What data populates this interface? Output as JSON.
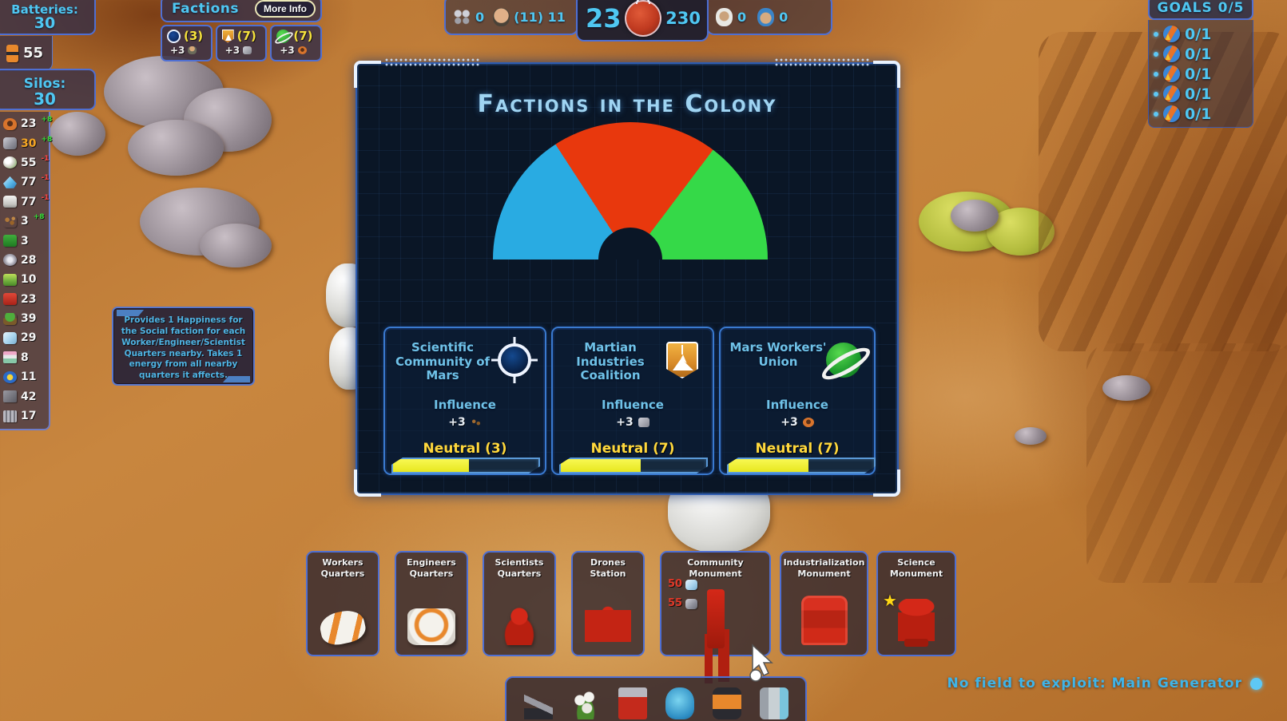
{
  "left_panel": {
    "batteries_label": "Batteries:",
    "batteries_value": "30",
    "battery_count": "55",
    "silos_label": "Silos:",
    "silos_value": "30",
    "resources": [
      {
        "icon": "copper-icon",
        "value": "23",
        "delta": "+8",
        "delta_color": "#3ae03a"
      },
      {
        "icon": "metal-icon",
        "value": "30",
        "delta": "+8",
        "delta_color": "#3ae03a",
        "value_color": "#f5a623"
      },
      {
        "icon": "food-icon",
        "value": "55",
        "delta": "-1",
        "delta_color": "#ff4545"
      },
      {
        "icon": "crystal-icon",
        "value": "77",
        "delta": "-1",
        "delta_color": "#ff4545"
      },
      {
        "icon": "canister-icon",
        "value": "77",
        "delta": "-1",
        "delta_color": "#ff4545"
      },
      {
        "icon": "seeds-icon",
        "value": "3",
        "delta": "+8",
        "delta_color": "#3ae03a"
      },
      {
        "icon": "green-barrel-icon",
        "value": "3"
      },
      {
        "icon": "turbine-icon",
        "value": "28"
      },
      {
        "icon": "machine-icon",
        "value": "10"
      },
      {
        "icon": "red-barrel-icon",
        "value": "23"
      },
      {
        "icon": "plant-icon",
        "value": "39"
      },
      {
        "icon": "glass-icon",
        "value": "29"
      },
      {
        "icon": "books-icon",
        "value": "8"
      },
      {
        "icon": "gadget-icon",
        "value": "11"
      },
      {
        "icon": "concrete-icon",
        "value": "42"
      },
      {
        "icon": "mesh-icon",
        "value": "17"
      }
    ]
  },
  "factions_panel": {
    "title": "Factions",
    "more_info_label": "More Info",
    "items": [
      {
        "faction": "scientific-community",
        "count": "(3)",
        "bonus": "+3"
      },
      {
        "faction": "martian-industries",
        "count": "(7)",
        "bonus": "+3"
      },
      {
        "faction": "mars-workers-union",
        "count": "(7)",
        "bonus": "+3"
      }
    ]
  },
  "top_stats": {
    "drones": "0",
    "workers": "(11) 11",
    "sol": "23",
    "colonists": "230",
    "engineers": "0",
    "scientists": "0"
  },
  "goals_panel": {
    "title": "GOALS 0/5",
    "items": [
      "0/1",
      "0/1",
      "0/1",
      "0/1",
      "0/1"
    ]
  },
  "tooltip": {
    "text": "Provides 1 Happiness for the Social faction for each Worker/Engineer/Scientist Quarters nearby. Takes 1 energy from all nearby quarters it affects."
  },
  "modal": {
    "title": "Factions in the Colony",
    "cards": [
      {
        "name": "Scientific Community of Mars",
        "influence_label": "Influence",
        "influence_bonus": "+3",
        "standing": "Neutral (3)",
        "bar_pct": 52
      },
      {
        "name": "Martian Industries Coalition",
        "influence_label": "Influence",
        "influence_bonus": "+3",
        "standing": "Neutral (7)",
        "bar_pct": 55
      },
      {
        "name": "Mars Workers' Union",
        "influence_label": "Influence",
        "influence_bonus": "+3",
        "standing": "Neutral (7)",
        "bar_pct": 55
      }
    ]
  },
  "chart_data": {
    "type": "pie",
    "variant": "semicircle-gauge",
    "title": "Factions in the Colony",
    "categories": [
      "Scientific Community of Mars",
      "Martian Industries Coalition",
      "Mars Workers' Union"
    ],
    "influence_counts": [
      3,
      7,
      7
    ],
    "values_deg": [
      57,
      70,
      53
    ],
    "colors": [
      "#29abe2",
      "#e8380d",
      "#35d948"
    ],
    "legend": "none"
  },
  "build_bar": {
    "items": [
      {
        "label": "Workers Quarters"
      },
      {
        "label": "Engineers Quarters"
      },
      {
        "label": "Scientists Quarters"
      },
      {
        "label": "Drones Station"
      },
      {
        "label": "Community Monument",
        "costs": [
          {
            "value": "50",
            "resource": "glass-icon"
          },
          {
            "value": "55",
            "resource": "metal-icon"
          }
        ]
      },
      {
        "label": "Industrialization Monument"
      },
      {
        "label": "Science Monument",
        "starred": "★"
      }
    ]
  },
  "hotbar": {
    "icons": [
      "robot-arm-icon",
      "flowers-icon",
      "crate-icon",
      "helmet-icon",
      "battery-icon",
      "canister-icon"
    ]
  },
  "status_bar": {
    "text": "No field to exploit: Main Generator"
  }
}
